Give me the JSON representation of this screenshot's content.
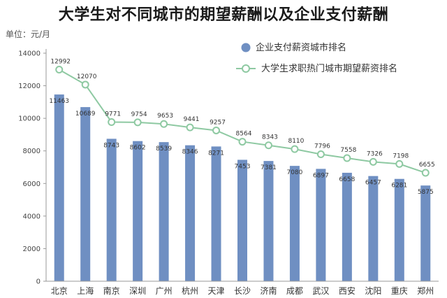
{
  "title": "大学生对不同城市的期望薪酬以及企业支付薪酬",
  "unit_label": "单位：元/月",
  "colors": {
    "bar": "#6f8fc2",
    "line": "#8ec9a2",
    "axis": "#999999"
  },
  "chart_data": {
    "type": "bar",
    "categories": [
      "北京",
      "上海",
      "南京",
      "深圳",
      "广州",
      "杭州",
      "天津",
      "长沙",
      "济南",
      "成都",
      "武汉",
      "西安",
      "沈阳",
      "重庆",
      "郑州"
    ],
    "series": [
      {
        "name": "企业支付薪资城市排名",
        "type": "bar",
        "values": [
          11463,
          10689,
          8743,
          8602,
          8539,
          8346,
          8271,
          7453,
          7381,
          7080,
          6897,
          6658,
          6457,
          6281,
          5875
        ]
      },
      {
        "name": "大学生求职热门城市期望薪资排名",
        "type": "line",
        "values": [
          12992,
          12070,
          9771,
          9754,
          9653,
          9441,
          9257,
          8564,
          8343,
          8110,
          7796,
          7558,
          7326,
          7198,
          6655
        ]
      }
    ],
    "ylim": [
      0,
      14000
    ],
    "yticks": [
      0,
      2000,
      4000,
      6000,
      8000,
      10000,
      12000,
      14000
    ],
    "legend_position": "top-right",
    "grid": false
  }
}
